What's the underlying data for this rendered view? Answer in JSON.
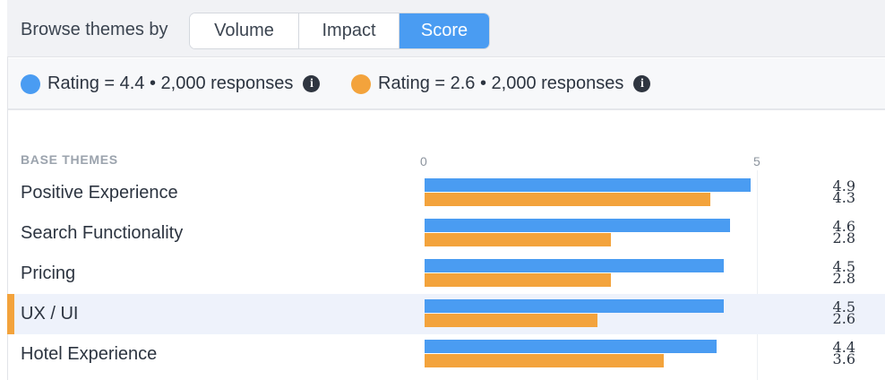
{
  "browse": {
    "label": "Browse themes by",
    "options": [
      "Volume",
      "Impact",
      "Score"
    ],
    "active": "Score"
  },
  "legend": [
    {
      "text": "Rating = 4.4 • 2,000 responses",
      "color": "#4a9cf2",
      "icon": "info-icon"
    },
    {
      "text": "Rating = 2.6 • 2,000 responses",
      "color": "#f3a33c",
      "icon": "info-icon"
    }
  ],
  "table": {
    "header": "BASE THEMES",
    "axis_min_label": "0",
    "axis_max_label": "5",
    "highlighted_row": "UX / UI"
  },
  "chart_data": {
    "type": "bar",
    "orientation": "horizontal",
    "categories": [
      "Positive Experience",
      "Search Functionality",
      "Pricing",
      "UX / UI",
      "Hotel Experience"
    ],
    "series": [
      {
        "color": "#4a9cf2",
        "values": [
          4.9,
          4.6,
          4.5,
          4.5,
          4.4
        ]
      },
      {
        "color": "#f3a33c",
        "values": [
          4.3,
          2.8,
          2.8,
          2.6,
          3.6
        ]
      }
    ],
    "xlim": [
      0,
      5
    ],
    "value_labels": [
      [
        "4.9",
        "4.3"
      ],
      [
        "4.6",
        "2.8"
      ],
      [
        "4.5",
        "2.8"
      ],
      [
        "4.5",
        "2.6"
      ],
      [
        "4.4",
        "3.6"
      ]
    ]
  }
}
